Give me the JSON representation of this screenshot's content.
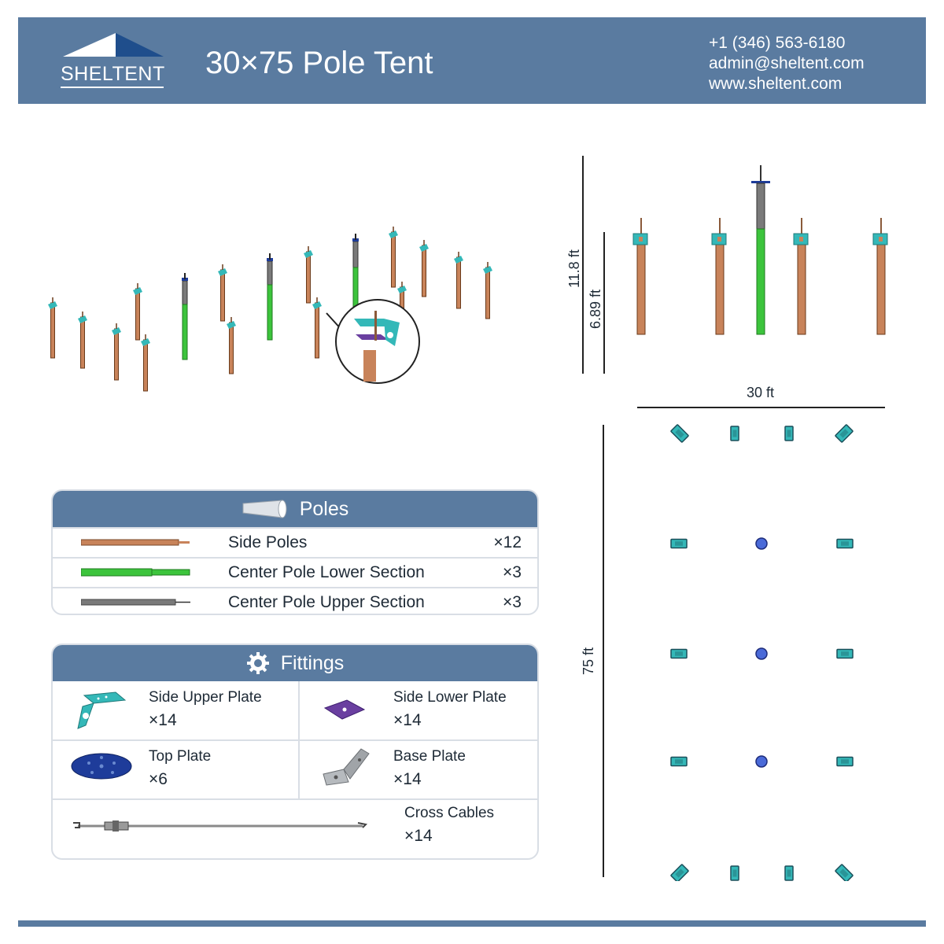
{
  "header": {
    "logo_text": "SHELTENT",
    "title": "30×75 Pole Tent",
    "phone": "+1 (346) 563-6180",
    "email": "admin@sheltent.com",
    "website": "www.sheltent.com"
  },
  "dimensions": {
    "total_height": "11.8 ft",
    "side_height": "6.89 ft",
    "width": "30 ft",
    "length": "75 ft"
  },
  "poles": {
    "heading": "Poles",
    "items": [
      {
        "name": "Side Poles",
        "qty": "×12",
        "color": "#c8835a"
      },
      {
        "name": "Center Pole Lower Section",
        "qty": "×3",
        "color": "#3cc43c"
      },
      {
        "name": "Center Pole Upper Section",
        "qty": "×3",
        "color": "#7a7a7a"
      }
    ]
  },
  "fittings": {
    "heading": "Fittings",
    "items": [
      {
        "name": "Side Upper Plate",
        "qty": "×14",
        "color": "#34b8b8"
      },
      {
        "name": "Side Lower Plate",
        "qty": "×14",
        "color": "#6a3fa0"
      },
      {
        "name": "Top Plate",
        "qty": "×6",
        "color": "#1e3c9a"
      },
      {
        "name": "Base Plate",
        "qty": "×14",
        "color": "#a0a4a8"
      },
      {
        "name": "Cross Cables",
        "qty": "×14",
        "color": "#8a8a8a"
      }
    ]
  },
  "colors": {
    "brand": "#5a7ba0",
    "side_pole": "#c8835a",
    "center_lower": "#3cc43c",
    "center_upper": "#7a7a7a",
    "fitting_teal": "#34b8b8"
  }
}
